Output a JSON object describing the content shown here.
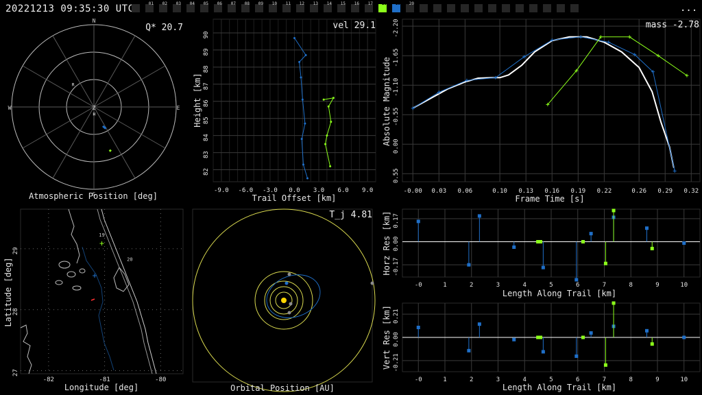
{
  "header": {
    "timestamp": "20221213 09:35:30 UTC",
    "more": "...",
    "cameras": [
      {
        "label": "",
        "state": "off"
      },
      {
        "label": "01",
        "state": "off"
      },
      {
        "label": "02",
        "state": "off"
      },
      {
        "label": "03",
        "state": "off"
      },
      {
        "label": "04",
        "state": "off"
      },
      {
        "label": "05",
        "state": "off"
      },
      {
        "label": "06",
        "state": "off"
      },
      {
        "label": "07",
        "state": "off"
      },
      {
        "label": "08",
        "state": "off"
      },
      {
        "label": "09",
        "state": "off"
      },
      {
        "label": "10",
        "state": "off"
      },
      {
        "label": "11",
        "state": "off"
      },
      {
        "label": "12",
        "state": "off"
      },
      {
        "label": "13",
        "state": "off"
      },
      {
        "label": "14",
        "state": "off"
      },
      {
        "label": "15",
        "state": "off"
      },
      {
        "label": "16",
        "state": "off"
      },
      {
        "label": "17",
        "state": "off"
      },
      {
        "label": "18",
        "state": "green"
      },
      {
        "label": "19",
        "state": "blue"
      },
      {
        "label": "20",
        "state": "off"
      },
      {
        "label": "",
        "state": "off"
      },
      {
        "label": "",
        "state": "off"
      },
      {
        "label": "",
        "state": "off"
      },
      {
        "label": "",
        "state": "off"
      },
      {
        "label": "",
        "state": "off"
      },
      {
        "label": "",
        "state": "off"
      },
      {
        "label": "",
        "state": "off"
      },
      {
        "label": "",
        "state": "off"
      },
      {
        "label": "",
        "state": "off"
      },
      {
        "label": "",
        "state": "off"
      },
      {
        "label": "",
        "state": "off"
      },
      {
        "label": "",
        "state": "off"
      }
    ]
  },
  "colors": {
    "blue": "#1f6fc8",
    "green": "#8cff1a",
    "white": "#ffffff",
    "grid": "#3a3a3a",
    "yellow": "#dcdc50",
    "gold": "#ffd700",
    "grey": "#8c8c8c"
  },
  "chart_data": [
    {
      "id": "atmospheric",
      "type": "polar",
      "xlabel": "Atmospheric Position [deg]",
      "stat": "Q* 20.7",
      "directions": [
        "N",
        "E",
        "S",
        "W",
        "Z"
      ],
      "labels": [
        {
          "text": "R",
          "az": 318,
          "zen": 34
        },
        {
          "text": "H",
          "az": 178,
          "zen": 7
        }
      ],
      "tracks": [
        {
          "name": "19",
          "color": "blue",
          "points": [
            [
              155,
              23
            ],
            [
              153,
              25
            ],
            [
              151,
              27
            ]
          ]
        },
        {
          "name": "18",
          "color": "green",
          "points": [
            [
              160,
              50
            ],
            [
              159,
              52
            ]
          ]
        }
      ]
    },
    {
      "id": "trail",
      "type": "line",
      "xlabel": "Trail Offset [km]",
      "ylabel": "Height [km]",
      "stat": "vel 29.1",
      "xticks": [
        "-9.0",
        "-6.0",
        "-3.0",
        "0.0",
        "3.0",
        "6.0",
        "9.0"
      ],
      "yticks": [
        "82",
        "83",
        "84",
        "85",
        "86",
        "87",
        "88",
        "89",
        "90"
      ],
      "xlim": [
        -10,
        10
      ],
      "ylim": [
        81.3,
        90.8
      ],
      "series": [
        {
          "name": "19",
          "color": "blue",
          "x": [
            0.0,
            1.4,
            0.6,
            0.8,
            1.0,
            1.3,
            0.9,
            1.1,
            1.6
          ],
          "y": [
            89.7,
            88.7,
            88.3,
            87.4,
            86.1,
            84.7,
            83.8,
            82.3,
            81.5
          ]
        },
        {
          "name": "18",
          "color": "green",
          "x": [
            3.6,
            4.8,
            4.2,
            4.5,
            4.0,
            3.8,
            4.4
          ],
          "y": [
            86.1,
            86.2,
            85.7,
            84.8,
            84.0,
            83.5,
            82.2
          ]
        }
      ]
    },
    {
      "id": "magnitude",
      "type": "line",
      "xlabel": "Frame Time [s]",
      "ylabel": "Absolute Magnitude",
      "stat": "mass -2.78",
      "xticks": [
        "-0.00",
        "0.03",
        "0.06",
        "0.10",
        "0.13",
        "0.16",
        "0.19",
        "0.22",
        "0.26",
        "0.29",
        "0.32"
      ],
      "yticks": [
        "-2.20",
        "-1.65",
        "-1.10",
        "-0.55",
        "0.00",
        "0.55"
      ],
      "xlim": [
        -0.012,
        0.33
      ],
      "ylim": [
        -2.33,
        0.7
      ],
      "fit": {
        "x": [
          -0.0,
          0.02,
          0.04,
          0.06,
          0.075,
          0.09,
          0.1,
          0.11,
          0.125,
          0.14,
          0.16,
          0.18,
          0.2,
          0.22,
          0.24,
          0.26,
          0.275,
          0.285,
          0.295,
          0.3
        ],
        "y": [
          -0.67,
          -0.85,
          -1.03,
          -1.16,
          -1.23,
          -1.24,
          -1.24,
          -1.29,
          -1.47,
          -1.72,
          -1.93,
          -2.0,
          -2.0,
          -1.9,
          -1.72,
          -1.43,
          -0.98,
          -0.42,
          0.05,
          0.44
        ]
      },
      "series": [
        {
          "name": "19",
          "color": "blue",
          "x": [
            -0.0,
            0.03,
            0.062,
            0.095,
            0.128,
            0.16,
            0.193,
            0.225,
            0.255,
            0.276,
            0.301
          ],
          "y": [
            -0.67,
            -0.97,
            -1.19,
            -1.24,
            -1.63,
            -1.94,
            -2.0,
            -1.9,
            -1.67,
            -1.35,
            0.5
          ]
        },
        {
          "name": "18",
          "color": "green",
          "x": [
            0.155,
            0.188,
            0.216,
            0.249,
            0.282,
            0.315
          ],
          "y": [
            -0.74,
            -1.37,
            -2.0,
            -2.0,
            -1.65,
            -1.28
          ]
        }
      ]
    },
    {
      "id": "geo",
      "type": "map",
      "xlabel": "Longitude [deg]",
      "ylabel": "Latitude [deg]",
      "xticks": [
        "-82",
        "-81",
        "-80"
      ],
      "yticks": [
        "27",
        "28",
        "29"
      ],
      "xlim": [
        -82.5,
        -79.6
      ],
      "ylim": [
        26.95,
        29.65
      ],
      "station_labels": [
        {
          "text": "19",
          "lon": -81.05,
          "lat": 29.2
        },
        {
          "text": "20",
          "lon": -80.55,
          "lat": 28.8
        }
      ]
    },
    {
      "id": "orbit",
      "type": "orbit",
      "xlabel": "Orbital Position [AU]",
      "stat": "T_j 4.81"
    },
    {
      "id": "horz",
      "type": "stem",
      "xlabel": "Length Along Trail [km]",
      "ylabel": "Horz Res [km]",
      "xticks": [
        "-0",
        "1",
        "2",
        "3",
        "4",
        "5",
        "6",
        "7",
        "8",
        "9",
        "10"
      ],
      "yticks": [
        "0.17",
        "0.00",
        "-0.17"
      ],
      "xlim": [
        -0.6,
        10.6
      ],
      "ylim": [
        -0.26,
        0.24
      ],
      "series": [
        {
          "name": "19",
          "color": "blue",
          "x": [
            0,
            1.9,
            2.3,
            3.6,
            4.7,
            5.95,
            6.5,
            7.35,
            8.6,
            10.0
          ],
          "y": [
            0.15,
            -0.17,
            0.19,
            -0.04,
            -0.19,
            -0.28,
            0.06,
            0.18,
            0.1,
            -0.01
          ]
        },
        {
          "name": "18",
          "color": "green",
          "x": [
            4.5,
            4.6,
            6.2,
            7.05,
            7.35,
            8.8
          ],
          "y": [
            0.0,
            0.0,
            0.0,
            -0.16,
            0.23,
            -0.05
          ]
        }
      ]
    },
    {
      "id": "vert",
      "type": "stem",
      "xlabel": "Length Along Trail [km]",
      "ylabel": "Vert Res [km]",
      "xticks": [
        "-0",
        "1",
        "2",
        "3",
        "4",
        "5",
        "6",
        "7",
        "8",
        "9",
        "10"
      ],
      "yticks": [
        "0.21",
        "0.00",
        "-0.21"
      ],
      "xlim": [
        -0.6,
        10.6
      ],
      "ylim": [
        -0.31,
        0.31
      ],
      "series": [
        {
          "name": "19",
          "color": "blue",
          "x": [
            0,
            1.9,
            2.3,
            3.6,
            4.7,
            5.95,
            6.5,
            7.35,
            8.6,
            10.0
          ],
          "y": [
            0.09,
            -0.12,
            0.12,
            -0.02,
            -0.13,
            -0.17,
            0.04,
            0.1,
            0.06,
            0.0
          ]
        },
        {
          "name": "18",
          "color": "green",
          "x": [
            4.5,
            4.6,
            6.2,
            7.05,
            7.35,
            8.8
          ],
          "y": [
            0.0,
            0.0,
            0.0,
            -0.25,
            0.31,
            -0.06
          ]
        }
      ]
    }
  ]
}
